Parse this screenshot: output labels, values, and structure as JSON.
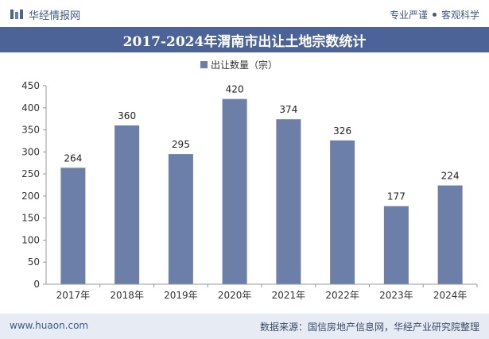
{
  "header": {
    "brand_name": "华经情报网",
    "slogan_left": "专业严谨",
    "slogan_right": "客观科学"
  },
  "colors": {
    "accent": "#4b6396",
    "bar": "#6c7fa8",
    "footer_bg": "#e7ecf4"
  },
  "chart_data": {
    "type": "bar",
    "title": "2017-2024年渭南市出让土地宗数统计",
    "legend": "出让数量（宗）",
    "legend_position": "top-center",
    "categories": [
      "2017年",
      "2018年",
      "2019年",
      "2020年",
      "2021年",
      "2022年",
      "2023年",
      "2024年"
    ],
    "series": [
      {
        "name": "出让数量（宗）",
        "values": [
          264,
          360,
          295,
          420,
          374,
          326,
          177,
          224
        ]
      }
    ],
    "yticks": [
      "0",
      "50",
      "100",
      "150",
      "200",
      "250",
      "300",
      "350",
      "400",
      "450"
    ],
    "ylim": [
      0,
      450
    ],
    "grid": false
  },
  "footer": {
    "site": "www.huaon.com",
    "source": "数据来源：国信房地产信息网，华经产业研究院整理"
  }
}
